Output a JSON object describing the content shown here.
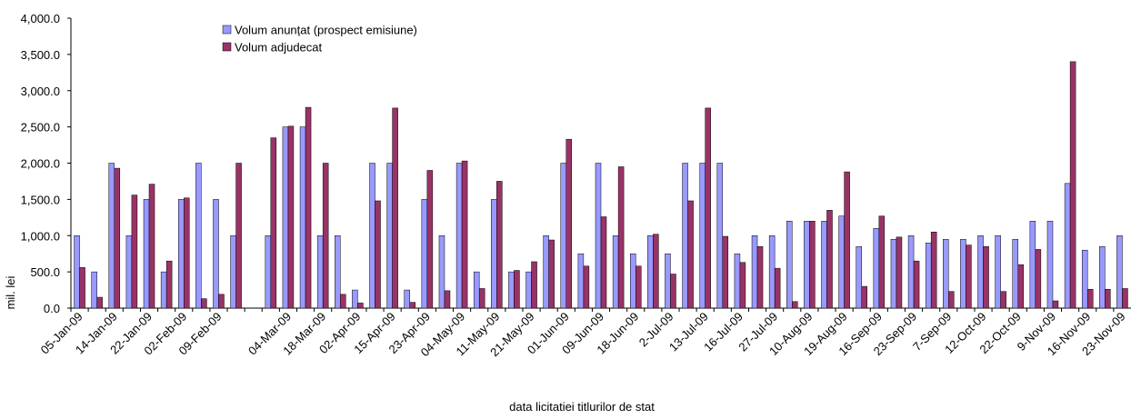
{
  "chart_data": {
    "type": "bar",
    "x_label": "data  licitatiei  titlurilor de stat",
    "y_label": "mil. lei",
    "categories": [
      "05-Jan-09",
      null,
      "14-Jan-09",
      null,
      "22-Jan-09",
      null,
      "02-Feb-09",
      null,
      "09-Feb-09",
      null,
      null,
      null,
      "04-Mar-09",
      null,
      "18-Mar-09",
      null,
      "02-Apr-09",
      null,
      "15-Apr-09",
      null,
      "23-Apr-09",
      null,
      "04-May-09",
      null,
      "11-May-09",
      null,
      "21-May-09",
      null,
      "01-Jun-09",
      null,
      "09-Jun-09",
      null,
      "18-Jun-09",
      null,
      "2-Jul-09",
      null,
      "13-Jul-09",
      null,
      "16-Jul-09",
      null,
      "27-Jul-09",
      null,
      "10-Aug-09",
      null,
      "19-Aug-09",
      null,
      "16-Sep-09",
      null,
      "23-Sep-09",
      null,
      "7-Sep-09",
      null,
      "12-Oct-09",
      null,
      "22-Oct-09",
      null,
      "9-Nov-09",
      null,
      "16-Nov-09",
      null,
      "23-Nov-09"
    ],
    "series": [
      {
        "name": "Volum anunțat (prospect emisiune)",
        "color": "#9999ff",
        "values": [
          1000,
          500,
          2000,
          1000,
          1500,
          500,
          1500,
          2000,
          1500,
          1000,
          0,
          1000,
          2500,
          2500,
          1000,
          1000,
          250,
          2000,
          2000,
          250,
          1500,
          1000,
          2000,
          500,
          1500,
          500,
          500,
          1000,
          2000,
          750,
          2000,
          1000,
          750,
          1000,
          750,
          2000,
          2000,
          2000,
          750,
          1000,
          1000,
          1200,
          1200,
          1200,
          1270,
          850,
          1100,
          950,
          1000,
          900,
          950,
          950,
          1000,
          1000,
          950,
          1200,
          1200,
          1720,
          800,
          850,
          1000
        ]
      },
      {
        "name": "Volum adjudecat",
        "color": "#993366",
        "values": [
          560,
          150,
          1930,
          1560,
          1710,
          650,
          1520,
          130,
          190,
          2000,
          0,
          2350,
          2510,
          2770,
          2000,
          190,
          70,
          1480,
          2760,
          80,
          1900,
          240,
          2030,
          270,
          1750,
          520,
          640,
          940,
          2330,
          580,
          1260,
          1950,
          580,
          1020,
          470,
          1480,
          2760,
          990,
          630,
          850,
          550,
          90,
          1200,
          1350,
          1880,
          300,
          1270,
          980,
          650,
          1050,
          230,
          870,
          850,
          230,
          600,
          810,
          100,
          3400,
          260,
          260,
          270
        ]
      }
    ],
    "ylim": [
      0,
      4000
    ],
    "yticks": [
      {
        "value": 0,
        "label": "0.0"
      },
      {
        "value": 500,
        "label": "500.0"
      },
      {
        "value": 1000,
        "label": "1,000.0"
      },
      {
        "value": 1500,
        "label": "1,500.0"
      },
      {
        "value": 2000,
        "label": "2,000.0"
      },
      {
        "value": 2500,
        "label": "2,500.0"
      },
      {
        "value": 3000,
        "label": "3,000.0"
      },
      {
        "value": 3500,
        "label": "3,500.0"
      },
      {
        "value": 4000,
        "label": "4,000.0"
      }
    ],
    "grid": false,
    "legend": "top"
  }
}
